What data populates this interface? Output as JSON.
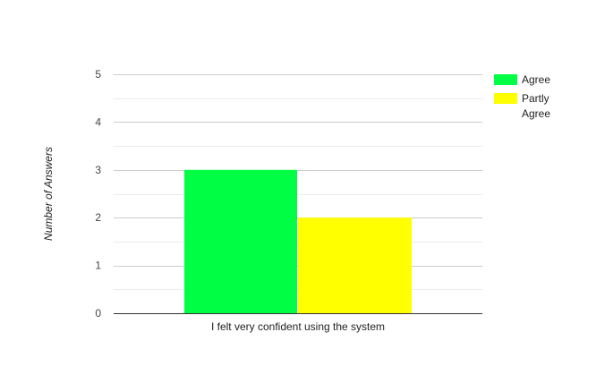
{
  "chart_data": {
    "type": "bar",
    "title": "",
    "xlabel": "",
    "ylabel": "Number of Answers",
    "ylim": [
      0,
      5
    ],
    "yticks": [
      0,
      1,
      2,
      3,
      4,
      5
    ],
    "minor_grid_step": 0.5,
    "grid": true,
    "legend_position": "right",
    "categories": [
      "I felt very confident using the system"
    ],
    "series": [
      {
        "name": "Agree",
        "values": [
          3
        ],
        "color": "#00ff44"
      },
      {
        "name": "Partly Agree",
        "values": [
          2
        ],
        "color": "#ffff00"
      }
    ]
  }
}
